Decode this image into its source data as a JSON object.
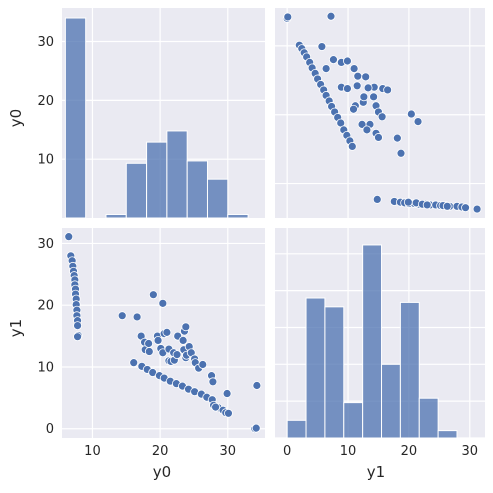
{
  "chart_data": {
    "type": "pairplot",
    "variables": [
      "y0",
      "y1"
    ],
    "colors": {
      "background": "#eaeaf2",
      "grid": "#ffffff",
      "marks": "#4c72b0",
      "marker_edge": "#ffffff"
    },
    "grid": true,
    "panels": [
      {
        "row": 0,
        "col": 0,
        "type": "histogram",
        "variable": "y0",
        "xlim": [
          5.5,
          35.5
        ],
        "bin_edges": [
          6.0,
          9.0,
          12.0,
          15.0,
          18.0,
          21.0,
          24.0,
          27.0,
          30.0,
          33.0,
          36.0
        ],
        "counts": [
          34,
          0,
          0.6,
          9.3,
          12.9,
          14.8,
          9.7,
          6.6,
          0.6,
          0
        ],
        "yticks": [
          10,
          20,
          30
        ],
        "ylabel": "y0"
      },
      {
        "row": 0,
        "col": 1,
        "type": "scatter",
        "x": "y1",
        "y": "y0",
        "xlim": [
          -2,
          32.5
        ],
        "ylim": [
          5,
          35.5
        ],
        "yticks": [
          10,
          20,
          30
        ],
        "points": [
          [
            0.0,
            34.0
          ],
          [
            0.1,
            34.2
          ],
          [
            7.2,
            34.3
          ],
          [
            2.0,
            30.1
          ],
          [
            2.4,
            29.6
          ],
          [
            2.8,
            29.0
          ],
          [
            3.2,
            28.4
          ],
          [
            3.7,
            27.6
          ],
          [
            4.1,
            26.8
          ],
          [
            4.6,
            26.0
          ],
          [
            5.0,
            25.2
          ],
          [
            5.5,
            24.4
          ],
          [
            6.0,
            23.6
          ],
          [
            6.4,
            22.8
          ],
          [
            6.9,
            22.0
          ],
          [
            7.3,
            21.2
          ],
          [
            7.8,
            20.4
          ],
          [
            8.3,
            19.6
          ],
          [
            8.8,
            18.8
          ],
          [
            9.3,
            17.8
          ],
          [
            9.8,
            17.0
          ],
          [
            10.3,
            16.2
          ],
          [
            10.7,
            15.4
          ],
          [
            5.7,
            29.9
          ],
          [
            6.4,
            26.7
          ],
          [
            7.6,
            28.0
          ],
          [
            8.9,
            27.6
          ],
          [
            9.9,
            27.8
          ],
          [
            11.0,
            26.7
          ],
          [
            11.6,
            25.6
          ],
          [
            12.9,
            25.5
          ],
          [
            14.3,
            24.0
          ],
          [
            15.7,
            23.8
          ],
          [
            13.3,
            23.9
          ],
          [
            14.2,
            22.6
          ],
          [
            14.6,
            21.3
          ],
          [
            15.0,
            20.4
          ],
          [
            15.6,
            19.7
          ],
          [
            12.5,
            21.8
          ],
          [
            11.2,
            21.3
          ],
          [
            10.9,
            20.8
          ],
          [
            13.6,
            18.6
          ],
          [
            12.3,
            18.6
          ],
          [
            13.1,
            17.8
          ],
          [
            14.6,
            17.3
          ],
          [
            15.0,
            16.7
          ],
          [
            18.1,
            16.6
          ],
          [
            18.7,
            14.4
          ],
          [
            20.4,
            20.1
          ],
          [
            21.5,
            19.0
          ],
          [
            16.5,
            23.6
          ],
          [
            8.9,
            24.0
          ],
          [
            9.9,
            23.8
          ],
          [
            11.5,
            24.2
          ],
          [
            12.6,
            22.6
          ],
          [
            14.8,
            7.7
          ],
          [
            17.6,
            7.4
          ],
          [
            18.6,
            7.3
          ],
          [
            19.3,
            7.2
          ],
          [
            20.0,
            7.1
          ],
          [
            20.9,
            7.1
          ],
          [
            21.7,
            7.0
          ],
          [
            22.7,
            7.0
          ],
          [
            23.5,
            6.9
          ],
          [
            24.4,
            6.9
          ],
          [
            25.2,
            6.8
          ],
          [
            26.1,
            6.8
          ],
          [
            26.7,
            6.7
          ],
          [
            27.9,
            6.7
          ],
          [
            28.7,
            6.6
          ],
          [
            29.3,
            6.5
          ],
          [
            31.2,
            6.3
          ],
          [
            19.9,
            7.3
          ],
          [
            21.2,
            7.2
          ],
          [
            22.2,
            7.0
          ],
          [
            23.0,
            6.9
          ],
          [
            25.6,
            6.8
          ],
          [
            26.3,
            6.7
          ]
        ]
      },
      {
        "row": 1,
        "col": 0,
        "type": "scatter",
        "x": "y0",
        "y": "y1",
        "xlim": [
          5.5,
          35.5
        ],
        "ylim": [
          -1.5,
          32.5
        ],
        "xticks": [
          10,
          20,
          30
        ],
        "yticks": [
          0,
          10,
          20,
          30
        ],
        "xlabel": "y0",
        "ylabel": "y1",
        "points": [
          [
            6.5,
            31.1
          ],
          [
            6.8,
            28.0
          ],
          [
            7.0,
            27.2
          ],
          [
            7.1,
            26.3
          ],
          [
            7.2,
            25.5
          ],
          [
            7.3,
            24.8
          ],
          [
            7.4,
            24.1
          ],
          [
            7.4,
            23.3
          ],
          [
            7.5,
            22.6
          ],
          [
            7.5,
            21.8
          ],
          [
            7.6,
            21.0
          ],
          [
            7.6,
            20.1
          ],
          [
            7.7,
            19.2
          ],
          [
            7.7,
            18.3
          ],
          [
            7.8,
            17.5
          ],
          [
            7.8,
            16.7
          ],
          [
            7.9,
            15.1
          ],
          [
            7.8,
            14.9
          ],
          [
            16.1,
            10.7
          ],
          [
            17.3,
            10.1
          ],
          [
            18.1,
            9.6
          ],
          [
            18.9,
            9.1
          ],
          [
            19.9,
            8.6
          ],
          [
            20.6,
            8.2
          ],
          [
            21.5,
            7.7
          ],
          [
            22.4,
            7.3
          ],
          [
            23.3,
            6.9
          ],
          [
            24.2,
            6.4
          ],
          [
            25.1,
            6.0
          ],
          [
            26.1,
            5.6
          ],
          [
            26.9,
            5.1
          ],
          [
            27.7,
            4.7
          ],
          [
            27.9,
            3.8
          ],
          [
            28.6,
            3.4
          ],
          [
            29.3,
            3.0
          ],
          [
            29.7,
            2.6
          ],
          [
            30.1,
            2.5
          ],
          [
            34.0,
            0.0
          ],
          [
            34.2,
            0.1
          ],
          [
            34.3,
            7.0
          ],
          [
            14.4,
            18.3
          ],
          [
            16.6,
            18.1
          ],
          [
            17.2,
            15.0
          ],
          [
            17.7,
            14.0
          ],
          [
            17.8,
            12.8
          ],
          [
            18.4,
            12.5
          ],
          [
            18.3,
            13.8
          ],
          [
            19.0,
            21.7
          ],
          [
            19.6,
            15.0
          ],
          [
            19.7,
            14.3
          ],
          [
            20.1,
            13.0
          ],
          [
            20.4,
            12.3
          ],
          [
            20.4,
            20.3
          ],
          [
            20.6,
            15.4
          ],
          [
            21.0,
            15.6
          ],
          [
            21.3,
            11.0
          ],
          [
            21.3,
            12.9
          ],
          [
            21.6,
            10.9
          ],
          [
            22.1,
            11.1
          ],
          [
            22.0,
            12.3
          ],
          [
            22.5,
            12.0
          ],
          [
            22.6,
            15.0
          ],
          [
            23.4,
            14.3
          ],
          [
            23.5,
            12.8
          ],
          [
            23.6,
            15.8
          ],
          [
            23.8,
            16.5
          ],
          [
            23.8,
            11.5
          ],
          [
            23.9,
            11.9
          ],
          [
            24.3,
            13.3
          ],
          [
            24.6,
            12.3
          ],
          [
            25.1,
            11.3
          ],
          [
            25.2,
            10.7
          ],
          [
            25.7,
            9.8
          ],
          [
            26.3,
            10.4
          ],
          [
            27.6,
            8.6
          ],
          [
            27.8,
            7.6
          ],
          [
            29.9,
            5.7
          ],
          [
            28.2,
            3.5
          ]
        ]
      },
      {
        "row": 1,
        "col": 1,
        "type": "histogram",
        "variable": "y1",
        "xlim": [
          -2,
          32.5
        ],
        "bin_edges": [
          0.0,
          3.1,
          6.2,
          9.3,
          12.4,
          15.5,
          18.6,
          21.7,
          24.8,
          27.9,
          31.0
        ],
        "counts": [
          2.4,
          19.0,
          17.8,
          4.8,
          26.2,
          10.0,
          18.4,
          5.4,
          1.0,
          0
        ],
        "ylim": [
          0,
          28.5
        ],
        "xticks": [
          0,
          10,
          20,
          30
        ],
        "xlabel": "y1"
      }
    ]
  }
}
